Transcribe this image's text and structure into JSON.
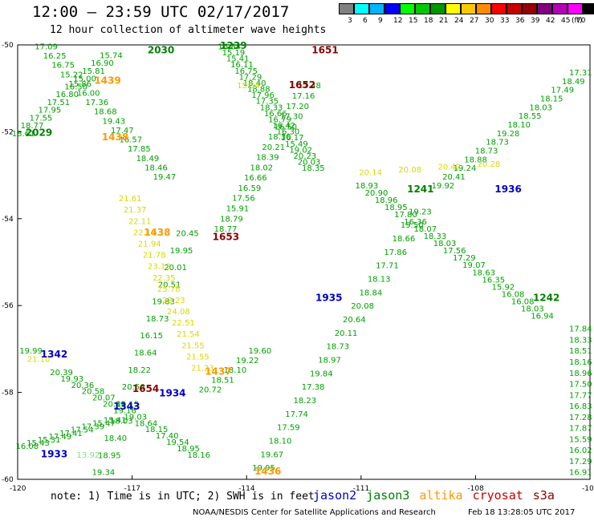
{
  "header": {
    "title": "12:00 — 23:59 UTC 02/17/2017",
    "subtitle": "12 hour collection of altimeter wave heights"
  },
  "colorbar": {
    "unit": "(ft)",
    "bins": [
      {
        "color": "#808080",
        "label": "3"
      },
      {
        "color": "#00ffff",
        "label": "6"
      },
      {
        "color": "#00b4ff",
        "label": "9"
      },
      {
        "color": "#0000ff",
        "label": "12"
      },
      {
        "color": "#00ff00",
        "label": "15"
      },
      {
        "color": "#00c800",
        "label": "18"
      },
      {
        "color": "#009600",
        "label": "21"
      },
      {
        "color": "#ffff00",
        "label": "24"
      },
      {
        "color": "#ffc800",
        "label": "27"
      },
      {
        "color": "#ff8c00",
        "label": "30"
      },
      {
        "color": "#ff0000",
        "label": "33"
      },
      {
        "color": "#c80000",
        "label": "36"
      },
      {
        "color": "#960000",
        "label": "39"
      },
      {
        "color": "#800080",
        "label": "42"
      },
      {
        "color": "#b400b4",
        "label": "45"
      },
      {
        "color": "#ff00ff",
        "label": "70"
      },
      {
        "color": "#000000",
        "label": ""
      }
    ]
  },
  "map": {
    "lon_ticks": [
      "-120",
      "-117",
      "-114",
      "-111",
      "-108",
      "-105"
    ],
    "lat_ticks": [
      "-50",
      "-52",
      "-54",
      "-56",
      "-58",
      "-60"
    ],
    "time_labels": [
      {
        "text": "2030",
        "color": "#008000",
        "lon": -116.3,
        "lat": -50.1
      },
      {
        "text": "1239",
        "color": "#008000",
        "lon": -114.4,
        "lat": -50.0
      },
      {
        "text": "1651",
        "color": "#8b0000",
        "lon": -112.0,
        "lat": -50.1
      },
      {
        "text": "1439",
        "color": "#ff9900",
        "lon": -117.7,
        "lat": -50.8
      },
      {
        "text": "1652",
        "color": "#8b0000",
        "lon": -112.6,
        "lat": -50.9
      },
      {
        "text": "2029",
        "color": "#008000",
        "lon": -119.5,
        "lat": -52.0
      },
      {
        "text": "1438",
        "color": "#ff9900",
        "lon": -117.5,
        "lat": -52.1
      },
      {
        "text": "1241",
        "color": "#008000",
        "lon": -109.5,
        "lat": -53.3
      },
      {
        "text": "1936",
        "color": "#0000c8",
        "lon": -107.2,
        "lat": -53.3
      },
      {
        "text": "1438",
        "color": "#ff9900",
        "lon": -116.4,
        "lat": -54.3
      },
      {
        "text": "1653",
        "color": "#8b0000",
        "lon": -114.6,
        "lat": -54.4
      },
      {
        "text": "1935",
        "color": "#0000c8",
        "lon": -111.9,
        "lat": -55.8
      },
      {
        "text": "1242",
        "color": "#008000",
        "lon": -106.2,
        "lat": -55.8
      },
      {
        "text": "1342",
        "color": "#0000c8",
        "lon": -119.1,
        "lat": -57.1
      },
      {
        "text": "1437",
        "color": "#ff9900",
        "lon": -114.8,
        "lat": -57.5
      },
      {
        "text": "1654",
        "color": "#8b0000",
        "lon": -116.7,
        "lat": -57.9
      },
      {
        "text": "1934",
        "color": "#0000c8",
        "lon": -116.0,
        "lat": -58.0
      },
      {
        "text": "1343",
        "color": "#0000c8",
        "lon": -117.2,
        "lat": -58.3
      },
      {
        "text": "1933",
        "color": "#0000c8",
        "lon": -119.1,
        "lat": -59.4
      },
      {
        "text": "1436",
        "color": "#ff9900",
        "lon": -113.5,
        "lat": -59.8
      }
    ],
    "tracks": [
      {
        "name": "jason3-2030",
        "color": "#00a000",
        "start": [
          -119.3,
          -50.1
        ],
        "end": [
          -116.2,
          -53.1
        ],
        "values": [
          "17.09",
          "16.25",
          "16.75",
          "15.22",
          "15.86",
          "16.00",
          "17.36",
          "18.68",
          "19.43",
          "17.47",
          "16.57",
          "17.85",
          "18.49",
          "18.46",
          "19.47"
        ]
      },
      {
        "name": "jason3-1239",
        "color": "#00a000",
        "start": [
          -114.5,
          -50.1
        ],
        "end": [
          -112.3,
          -52.9
        ],
        "values": [
          "16.84",
          "15.19",
          "15.41",
          "16.11",
          "16.75",
          "17.29",
          "18.40",
          "18.88",
          "17.96",
          "17.35",
          "18.33",
          "16.66",
          "16.79",
          "16.42",
          "16.30",
          "16.17",
          "15.49",
          "19.02",
          "20.23",
          "20.03",
          "18.35"
        ]
      },
      {
        "name": "jason3-2029",
        "color": "#00a000",
        "start": [
          -117.6,
          -50.3
        ],
        "end": [
          -119.9,
          -52.1
        ],
        "values": [
          "15.74",
          "16.90",
          "15.81",
          "15.00",
          "16.50",
          "16.80",
          "17.51",
          "17.95",
          "17.55",
          "18.77",
          "18.61"
        ]
      },
      {
        "name": "jason3-1240",
        "color": "#00a000",
        "start": [
          -112.4,
          -51.0
        ],
        "end": [
          -114.6,
          -54.3
        ],
        "values": [
          "17.48",
          "17.16",
          "17.20",
          "17.30",
          "16.50",
          "18.30",
          "20.21",
          "18.39",
          "18.02",
          "16.66",
          "16.59",
          "17.56",
          "15.91",
          "18.79",
          "18.77"
        ]
      },
      {
        "name": "jason3-1241",
        "color": "#00a000",
        "start": [
          -110.9,
          -53.3
        ],
        "end": [
          -106.3,
          -56.3
        ],
        "values": [
          "18.93",
          "20.90",
          "18.96",
          "18.95",
          "17.80",
          "16.36",
          "18.07",
          "18.33",
          "18.03",
          "17.56",
          "17.29",
          "19.07",
          "18.63",
          "16.35",
          "15.92",
          "16.08",
          "16.08",
          "18.03",
          "16.94"
        ]
      },
      {
        "name": "jason3-1242",
        "color": "#00a000",
        "start": [
          -108.9,
          -53.3
        ],
        "end": [
          -105.2,
          -50.7
        ],
        "values": [
          "19.92",
          "20.41",
          "19.24",
          "18.88",
          "18.73",
          "18.73",
          "19.28",
          "18.10",
          "18.55",
          "18.03",
          "18.15",
          "17.49",
          "18.49",
          "17.31"
        ]
      },
      {
        "name": "jason3-1935",
        "color": "#00a000",
        "start": [
          -113.6,
          -59.8
        ],
        "end": [
          -109.5,
          -53.9
        ],
        "values": [
          "19.95",
          "19.67",
          "18.10",
          "17.59",
          "17.74",
          "18.23",
          "17.38",
          "19.84",
          "18.97",
          "18.73",
          "20.11",
          "20.64",
          "20.08",
          "18.84",
          "18.13",
          "17.71",
          "17.86",
          "18.66",
          "19.50",
          "19.23"
        ]
      },
      {
        "name": "jason3-1654",
        "color": "#00a000",
        "start": [
          -115.6,
          -54.4
        ],
        "end": [
          -117.8,
          -59.9
        ],
        "values": [
          "20.45",
          "19.95",
          "20.01",
          "20.51",
          "19.83",
          "18.73",
          "16.15",
          "18.64",
          "18.22",
          "20.56",
          "18.15",
          "18.03",
          "18.40",
          "18.95",
          "19.34"
        ]
      },
      {
        "name": "jason3-1934",
        "color": "#00a000",
        "start": [
          -118.9,
          -57.6
        ],
        "end": [
          -115.3,
          -59.5
        ],
        "values": [
          "20.39",
          "19.93",
          "20.36",
          "20.58",
          "20.07",
          "20.31",
          "19.16",
          "19.03",
          "18.64",
          "18.15",
          "17.40",
          "19.54",
          "18.95",
          "18.16"
        ]
      },
      {
        "name": "jason3-1342",
        "color": "#00a000",
        "start": [
          -119.7,
          -57.1
        ],
        "end": [
          -119.7,
          -57.1
        ],
        "values": [
          "19.99"
        ]
      },
      {
        "name": "jason3-1933",
        "color": "#00a000",
        "start": [
          -119.8,
          -59.3
        ],
        "end": [
          -117.5,
          -58.7
        ],
        "values": [
          "16.08",
          "15.43",
          "15.31",
          "17.49",
          "17.41",
          "17.54",
          "17.39",
          "15.47",
          "15.41"
        ]
      },
      {
        "name": "jason3-1436",
        "color": "#00a000",
        "start": [
          -115.0,
          -58.0
        ],
        "end": [
          -113.7,
          -57.1
        ],
        "values": [
          "20.72",
          "18.51",
          "18.10",
          "19.22",
          "19.60"
        ]
      },
      {
        "name": "jason3-edge",
        "color": "#00a000",
        "start": [
          -105.2,
          -56.6
        ],
        "end": [
          -105.2,
          -59.9
        ],
        "values": [
          "17.84",
          "18.33",
          "18.51",
          "18.16",
          "18.96",
          "17.50",
          "17.77",
          "16.83",
          "17.28",
          "17.87",
          "15.59",
          "16.02",
          "17.29",
          "16.91"
        ]
      },
      {
        "name": "altika-1439",
        "color": "#d8d800",
        "start": [
          -114.0,
          -51.0
        ],
        "end": [
          -113.9,
          -51.0
        ],
        "values": [
          "15.54"
        ]
      },
      {
        "name": "altika-1438",
        "color": "#d8d800",
        "start": [
          -117.1,
          -53.6
        ],
        "end": [
          -115.2,
          -57.5
        ],
        "values": [
          "21.61",
          "21.37",
          "22.11",
          "22.15",
          "21.94",
          "21.78",
          "23.13",
          "22.35",
          "25.78",
          "22.23",
          "24.08",
          "22.51",
          "21.54",
          "21.55",
          "21.55",
          "21.23"
        ]
      },
      {
        "name": "altika-1241",
        "color": "#d8d800",
        "start": [
          -110.8,
          -53.0
        ],
        "end": [
          -107.7,
          -52.8
        ],
        "values": [
          "20.14",
          "20.08",
          "20.42",
          "20.28"
        ]
      },
      {
        "name": "altika-1933",
        "color": "#80e080",
        "start": [
          -118.2,
          -59.5
        ],
        "end": [
          -118.2,
          -59.5
        ],
        "values": [
          "13.92"
        ]
      },
      {
        "name": "altika-1342",
        "color": "#d8d800",
        "start": [
          -119.5,
          -57.3
        ],
        "end": [
          -119.5,
          -57.3
        ],
        "values": [
          "21.10"
        ]
      }
    ]
  },
  "footer": {
    "note": "note: 1) Time is in UTC; 2) SWH is in feet",
    "legend": [
      {
        "label": "jason2",
        "color": "#0000c8"
      },
      {
        "label": "jason3",
        "color": "#008000"
      },
      {
        "label": "altika",
        "color": "#ff9900"
      },
      {
        "label": "cryosat",
        "color": "#c80000"
      },
      {
        "label": "s3a",
        "color": "#8b0000"
      }
    ],
    "credit": "NOAA/NESDIS Center for Satellite Applications and Research",
    "timestamp": "Feb 18 13:28:05 UTC 2017"
  }
}
